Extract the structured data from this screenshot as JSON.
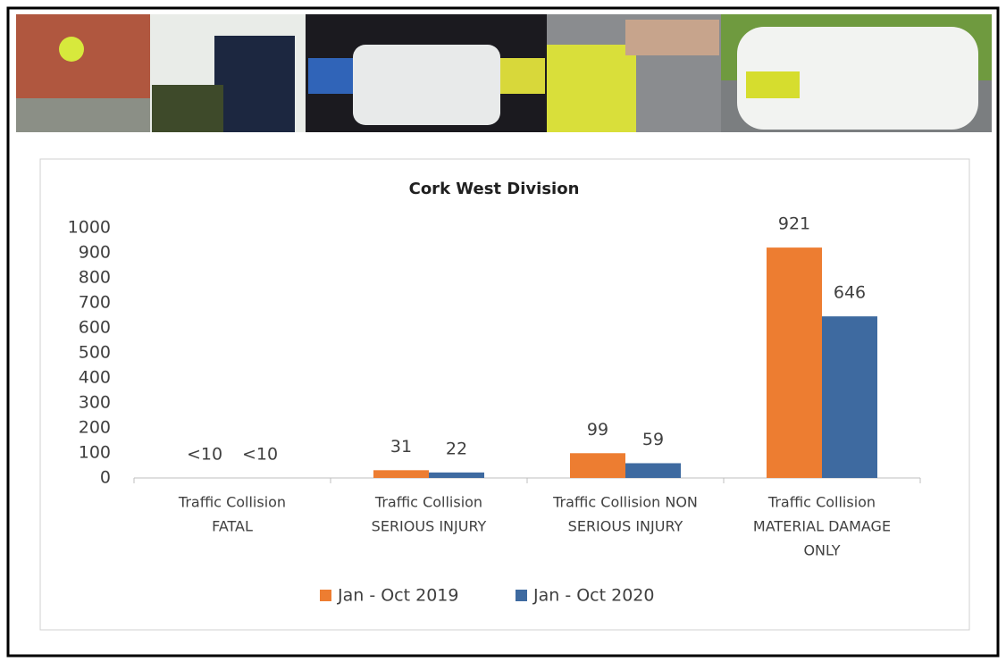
{
  "chart_data": {
    "type": "bar",
    "title": "Cork West Division",
    "categories": [
      [
        "Traffic Collision",
        "FATAL"
      ],
      [
        "Traffic Collision",
        "SERIOUS INJURY"
      ],
      [
        "Traffic Collision NON",
        "SERIOUS INJURY"
      ],
      [
        "Traffic Collision",
        "MATERIAL DAMAGE",
        "ONLY"
      ]
    ],
    "series": [
      {
        "name": "Jan - Oct 2019",
        "color": "#ed7d31",
        "values": [
          null,
          31,
          99,
          921
        ],
        "value_labels": [
          "<10",
          "31",
          "99",
          "921"
        ]
      },
      {
        "name": "Jan - Oct 2020",
        "color": "#3e6aa0",
        "values": [
          null,
          22,
          59,
          646
        ],
        "value_labels": [
          "<10",
          "22",
          "59",
          "646"
        ]
      }
    ],
    "ylim": [
      0,
      1000
    ],
    "yticks": [
      0,
      100,
      200,
      300,
      400,
      500,
      600,
      700,
      800,
      900,
      1000
    ],
    "grid": false,
    "legend": "bottom"
  }
}
